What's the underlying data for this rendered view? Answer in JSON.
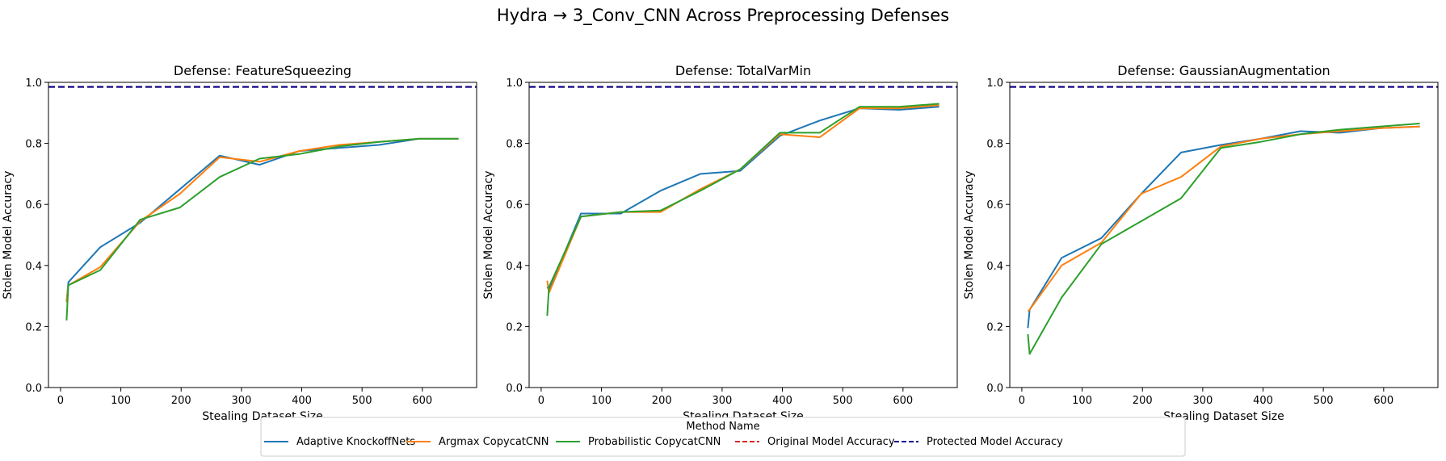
{
  "figure_title": "Hydra → 3_Conv_CNN Across Preprocessing Defenses",
  "colors": {
    "Adaptive KnockoffNets": "#1f77b4",
    "Argmax CopycatCNN": "#ff7f0e",
    "Probabilistic CopycatCNN": "#2ca02c",
    "Original Model Accuracy": "#d62728",
    "Protected Model Accuracy": "#00008b"
  },
  "legend": {
    "title": "Method Name",
    "entries": [
      {
        "label": "Adaptive KnockoffNets",
        "style": "solid"
      },
      {
        "label": "Argmax CopycatCNN",
        "style": "solid"
      },
      {
        "label": "Probabilistic CopycatCNN",
        "style": "solid"
      },
      {
        "label": "Original Model Accuracy",
        "style": "dashed"
      },
      {
        "label": "Protected Model Accuracy",
        "style": "dashed"
      }
    ]
  },
  "chart_data": [
    {
      "type": "line",
      "title": "Defense: FeatureSqueezing",
      "xlabel": "Stealing Dataset Size",
      "ylabel": "Stolen Model Accuracy",
      "xlim": [
        -20,
        690
      ],
      "ylim": [
        0,
        1.0
      ],
      "xticks": [
        "0",
        "100",
        "200",
        "300",
        "400",
        "500",
        "600"
      ],
      "yticks": [
        "0.0",
        "0.2",
        "0.4",
        "0.6",
        "0.8",
        "1.0"
      ],
      "hlines": [
        {
          "name": "Original Model Accuracy",
          "y": 0.985
        },
        {
          "name": "Protected Model Accuracy",
          "y": 0.985
        }
      ],
      "series": [
        {
          "name": "Adaptive KnockoffNets",
          "x": [
            10,
            13,
            66,
            132,
            198,
            264,
            330,
            396,
            462,
            528,
            594,
            660
          ],
          "y": [
            0.28,
            0.345,
            0.46,
            0.54,
            0.65,
            0.76,
            0.73,
            0.775,
            0.785,
            0.795,
            0.815,
            0.815
          ]
        },
        {
          "name": "Argmax CopycatCNN",
          "x": [
            10,
            13,
            66,
            132,
            198,
            264,
            330,
            396,
            462,
            528,
            594,
            660
          ],
          "y": [
            0.28,
            0.335,
            0.395,
            0.545,
            0.635,
            0.755,
            0.74,
            0.775,
            0.795,
            0.805,
            0.815,
            0.815
          ]
        },
        {
          "name": "Probabilistic CopycatCNN",
          "x": [
            10,
            13,
            66,
            132,
            198,
            264,
            330,
            396,
            462,
            528,
            594,
            660
          ],
          "y": [
            0.22,
            0.335,
            0.385,
            0.55,
            0.59,
            0.69,
            0.75,
            0.765,
            0.79,
            0.805,
            0.815,
            0.815
          ]
        }
      ]
    },
    {
      "type": "line",
      "title": "Defense: TotalVarMin",
      "xlabel": "Stealing Dataset Size",
      "ylabel": "Stolen Model Accuracy",
      "xlim": [
        -20,
        690
      ],
      "ylim": [
        0,
        1.0
      ],
      "xticks": [
        "0",
        "100",
        "200",
        "300",
        "400",
        "500",
        "600"
      ],
      "yticks": [
        "0.0",
        "0.2",
        "0.4",
        "0.6",
        "0.8",
        "1.0"
      ],
      "hlines": [
        {
          "name": "Original Model Accuracy",
          "y": 0.985
        },
        {
          "name": "Protected Model Accuracy",
          "y": 0.985
        }
      ],
      "series": [
        {
          "name": "Adaptive KnockoffNets",
          "x": [
            10,
            13,
            66,
            132,
            198,
            264,
            330,
            396,
            462,
            528,
            594,
            660
          ],
          "y": [
            0.33,
            0.32,
            0.57,
            0.57,
            0.645,
            0.7,
            0.71,
            0.825,
            0.875,
            0.915,
            0.91,
            0.92
          ]
        },
        {
          "name": "Argmax CopycatCNN",
          "x": [
            10,
            13,
            66,
            132,
            198,
            264,
            330,
            396,
            462,
            528,
            594,
            660
          ],
          "y": [
            0.35,
            0.31,
            0.56,
            0.575,
            0.575,
            0.65,
            0.715,
            0.83,
            0.82,
            0.915,
            0.915,
            0.925
          ]
        },
        {
          "name": "Probabilistic CopycatCNN",
          "x": [
            10,
            13,
            66,
            132,
            198,
            264,
            330,
            396,
            462,
            528,
            594,
            660
          ],
          "y": [
            0.235,
            0.33,
            0.56,
            0.575,
            0.58,
            0.645,
            0.715,
            0.835,
            0.835,
            0.92,
            0.92,
            0.93
          ]
        }
      ]
    },
    {
      "type": "line",
      "title": "Defense: GaussianAugmentation",
      "xlabel": "Stealing Dataset Size",
      "ylabel": "Stolen Model Accuracy",
      "xlim": [
        -20,
        690
      ],
      "ylim": [
        0,
        1.0
      ],
      "xticks": [
        "0",
        "100",
        "200",
        "300",
        "400",
        "500",
        "600"
      ],
      "yticks": [
        "0.0",
        "0.2",
        "0.4",
        "0.6",
        "0.8",
        "1.0"
      ],
      "hlines": [
        {
          "name": "Original Model Accuracy",
          "y": 0.985
        },
        {
          "name": "Protected Model Accuracy",
          "y": 0.985
        }
      ],
      "series": [
        {
          "name": "Adaptive KnockoffNets",
          "x": [
            10,
            13,
            66,
            132,
            198,
            264,
            330,
            396,
            462,
            528,
            594,
            660
          ],
          "y": [
            0.195,
            0.255,
            0.425,
            0.49,
            0.635,
            0.77,
            0.795,
            0.815,
            0.84,
            0.835,
            0.85,
            0.855
          ]
        },
        {
          "name": "Argmax CopycatCNN",
          "x": [
            10,
            13,
            66,
            132,
            198,
            264,
            330,
            396,
            462,
            528,
            594,
            660
          ],
          "y": [
            0.25,
            0.255,
            0.4,
            0.475,
            0.635,
            0.69,
            0.79,
            0.815,
            0.83,
            0.84,
            0.85,
            0.855
          ]
        },
        {
          "name": "Probabilistic CopycatCNN",
          "x": [
            10,
            13,
            66,
            132,
            198,
            264,
            330,
            396,
            462,
            528,
            594,
            660
          ],
          "y": [
            0.175,
            0.11,
            0.295,
            0.47,
            0.545,
            0.62,
            0.785,
            0.805,
            0.83,
            0.845,
            0.855,
            0.865
          ]
        }
      ]
    }
  ]
}
